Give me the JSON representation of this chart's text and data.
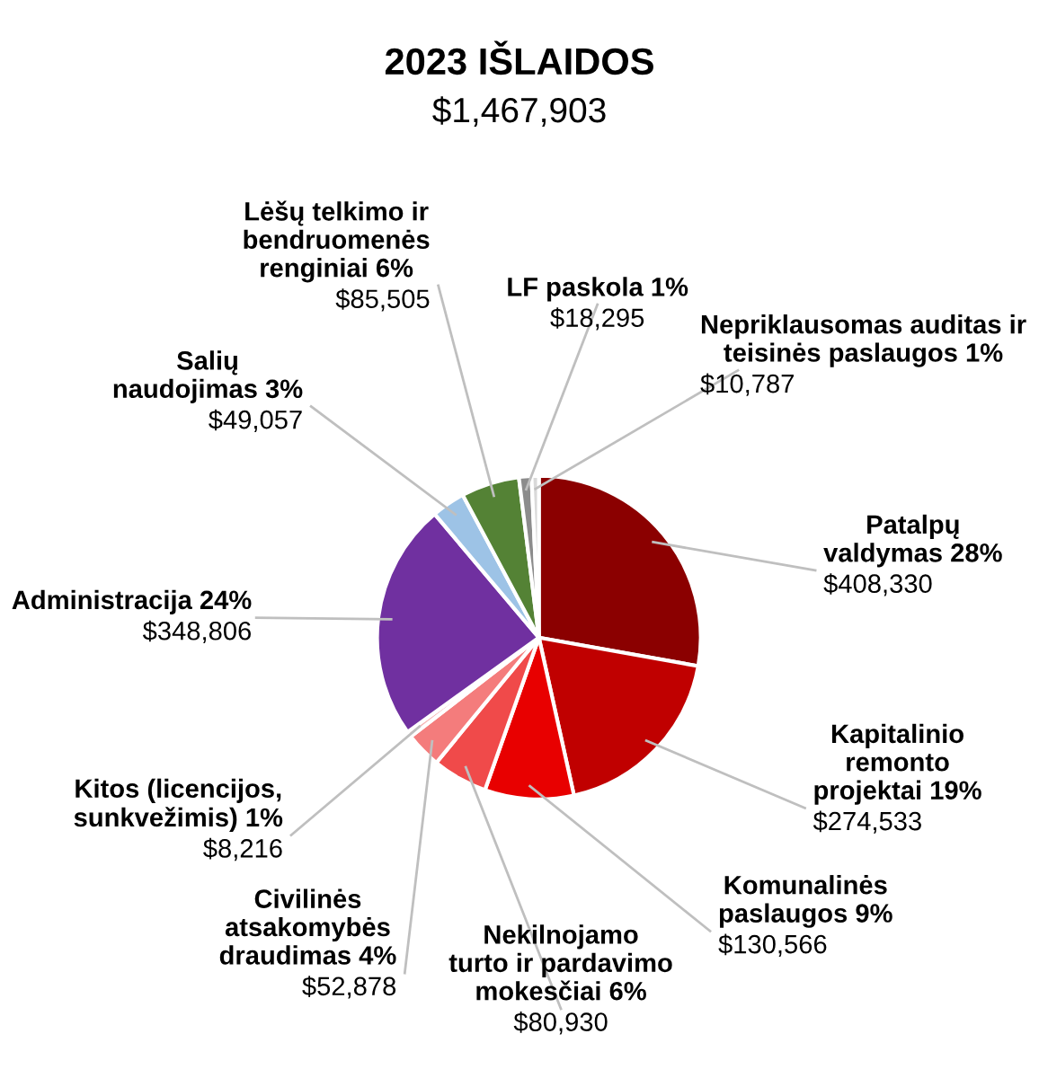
{
  "chart_data": {
    "type": "pie",
    "title": "2023 IŠLAIDOS",
    "subtitle": "$1,467,903",
    "categories": [
      "Patalpų\nvaldymas 28%",
      "Kapitalinio\nremonto\nprojektai 19%",
      "Komunalinės\npaslaugos 9%",
      "Nekilnojamo\nturto ir pardavimo\nmokesčiai 6%",
      "Civilinės\natsakomybės\ndraudimas 4%",
      "Kitos (licencijos,\nsunkvežimis) 1%",
      "Administracija 24%",
      "Salių\nnaudojimas 3%",
      "Lėšų telkimo ir\nbendruomenės\nrenginiai 6%",
      "LF paskola 1%",
      "Nepriklausomas auditas ir\nteisinės paslaugos 1%"
    ],
    "values": [
      408330,
      274533,
      130566,
      80930,
      52878,
      8216,
      348806,
      49057,
      85505,
      18295,
      10787
    ],
    "value_labels": [
      "$408,330",
      "$274,533",
      "$130,566",
      "$80,930",
      "$52,878",
      "$8,216",
      "$348,806",
      "$49,057",
      "$85,505",
      "$18,295",
      "$10,787"
    ],
    "colors": [
      "#8b0000",
      "#c00000",
      "#e80000",
      "#f04a4a",
      "#f47c7c",
      "#f6b3b3",
      "#7030a0",
      "#9dc3e6",
      "#548235",
      "#8c8c8c",
      "#d9d9d9"
    ]
  }
}
